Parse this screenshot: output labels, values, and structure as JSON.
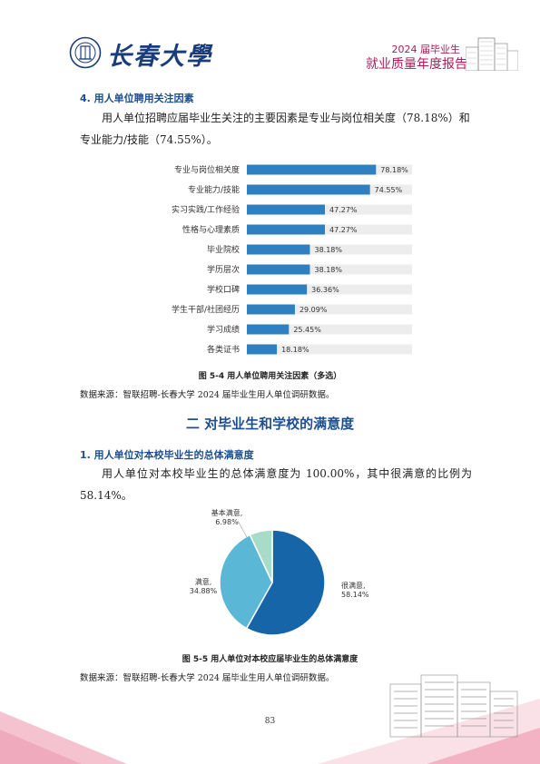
{
  "header": {
    "university_name": "长春大學",
    "report_title_line1": "2024 届毕业生",
    "report_title_line2": "就业质量年度报告",
    "logo_icon": "university-seal-icon"
  },
  "section4": {
    "heading": "4.  用人单位聘用关注因素",
    "paragraph": "用人单位招聘应届毕业生关注的主要因素是专业与岗位相关度（78.18%）和专业能力/技能（74.55%）。"
  },
  "figure_5_4": {
    "caption": "图  5-4    用人单位聘用关注因素（多选）",
    "source": "数据来源：智联招聘-长春大学 2024 届毕业生用人单位调研数据。"
  },
  "section_two": {
    "heading": "二  对毕业生和学校的满意度",
    "sub1_heading": "1.  用人单位对本校毕业生的总体满意度",
    "paragraph": "用人单位对本校毕业生的总体满意度为 100.00%，其中很满意的比例为 58.14%。"
  },
  "figure_5_5": {
    "caption": "图  5-5    用人单位对本校应届毕业生的总体满意度",
    "source": "数据来源：智联招聘-长春大学 2024 届毕业生用人单位调研数据。"
  },
  "page_number": "83",
  "colors": {
    "bar": "#2f80c0",
    "bar_track": "#ededed",
    "pie_very": "#1565a8",
    "pie_satisfied": "#5ab8d6",
    "pie_basic": "#a8dcc8",
    "heading_blue": "#1d4f8f",
    "accent_pink": "#b0185c"
  },
  "chart_data": [
    {
      "type": "bar",
      "orientation": "horizontal",
      "categories": [
        "专业与岗位相关度",
        "专业能力/技能",
        "实习实践/工作经验",
        "性格与心理素质",
        "毕业院校",
        "学历层次",
        "学校口碑",
        "学生干部/社团经历",
        "学习成绩",
        "各类证书"
      ],
      "values": [
        78.18,
        74.55,
        47.27,
        47.27,
        38.18,
        38.18,
        36.36,
        29.09,
        25.45,
        18.18
      ],
      "data_labels": [
        "78.18%",
        "74.55%",
        "47.27%",
        "47.27%",
        "38.18%",
        "38.18%",
        "36.36%",
        "29.09%",
        "25.45%",
        "18.18%"
      ],
      "xlim": [
        0,
        100
      ]
    },
    {
      "type": "pie",
      "slices": [
        {
          "label": "很满意,",
          "value": 58.14,
          "value_label": "58.14%"
        },
        {
          "label": "满意,",
          "value": 34.88,
          "value_label": "34.88%"
        },
        {
          "label": "基本满意,",
          "value": 6.98,
          "value_label": "6.98%"
        }
      ]
    }
  ]
}
